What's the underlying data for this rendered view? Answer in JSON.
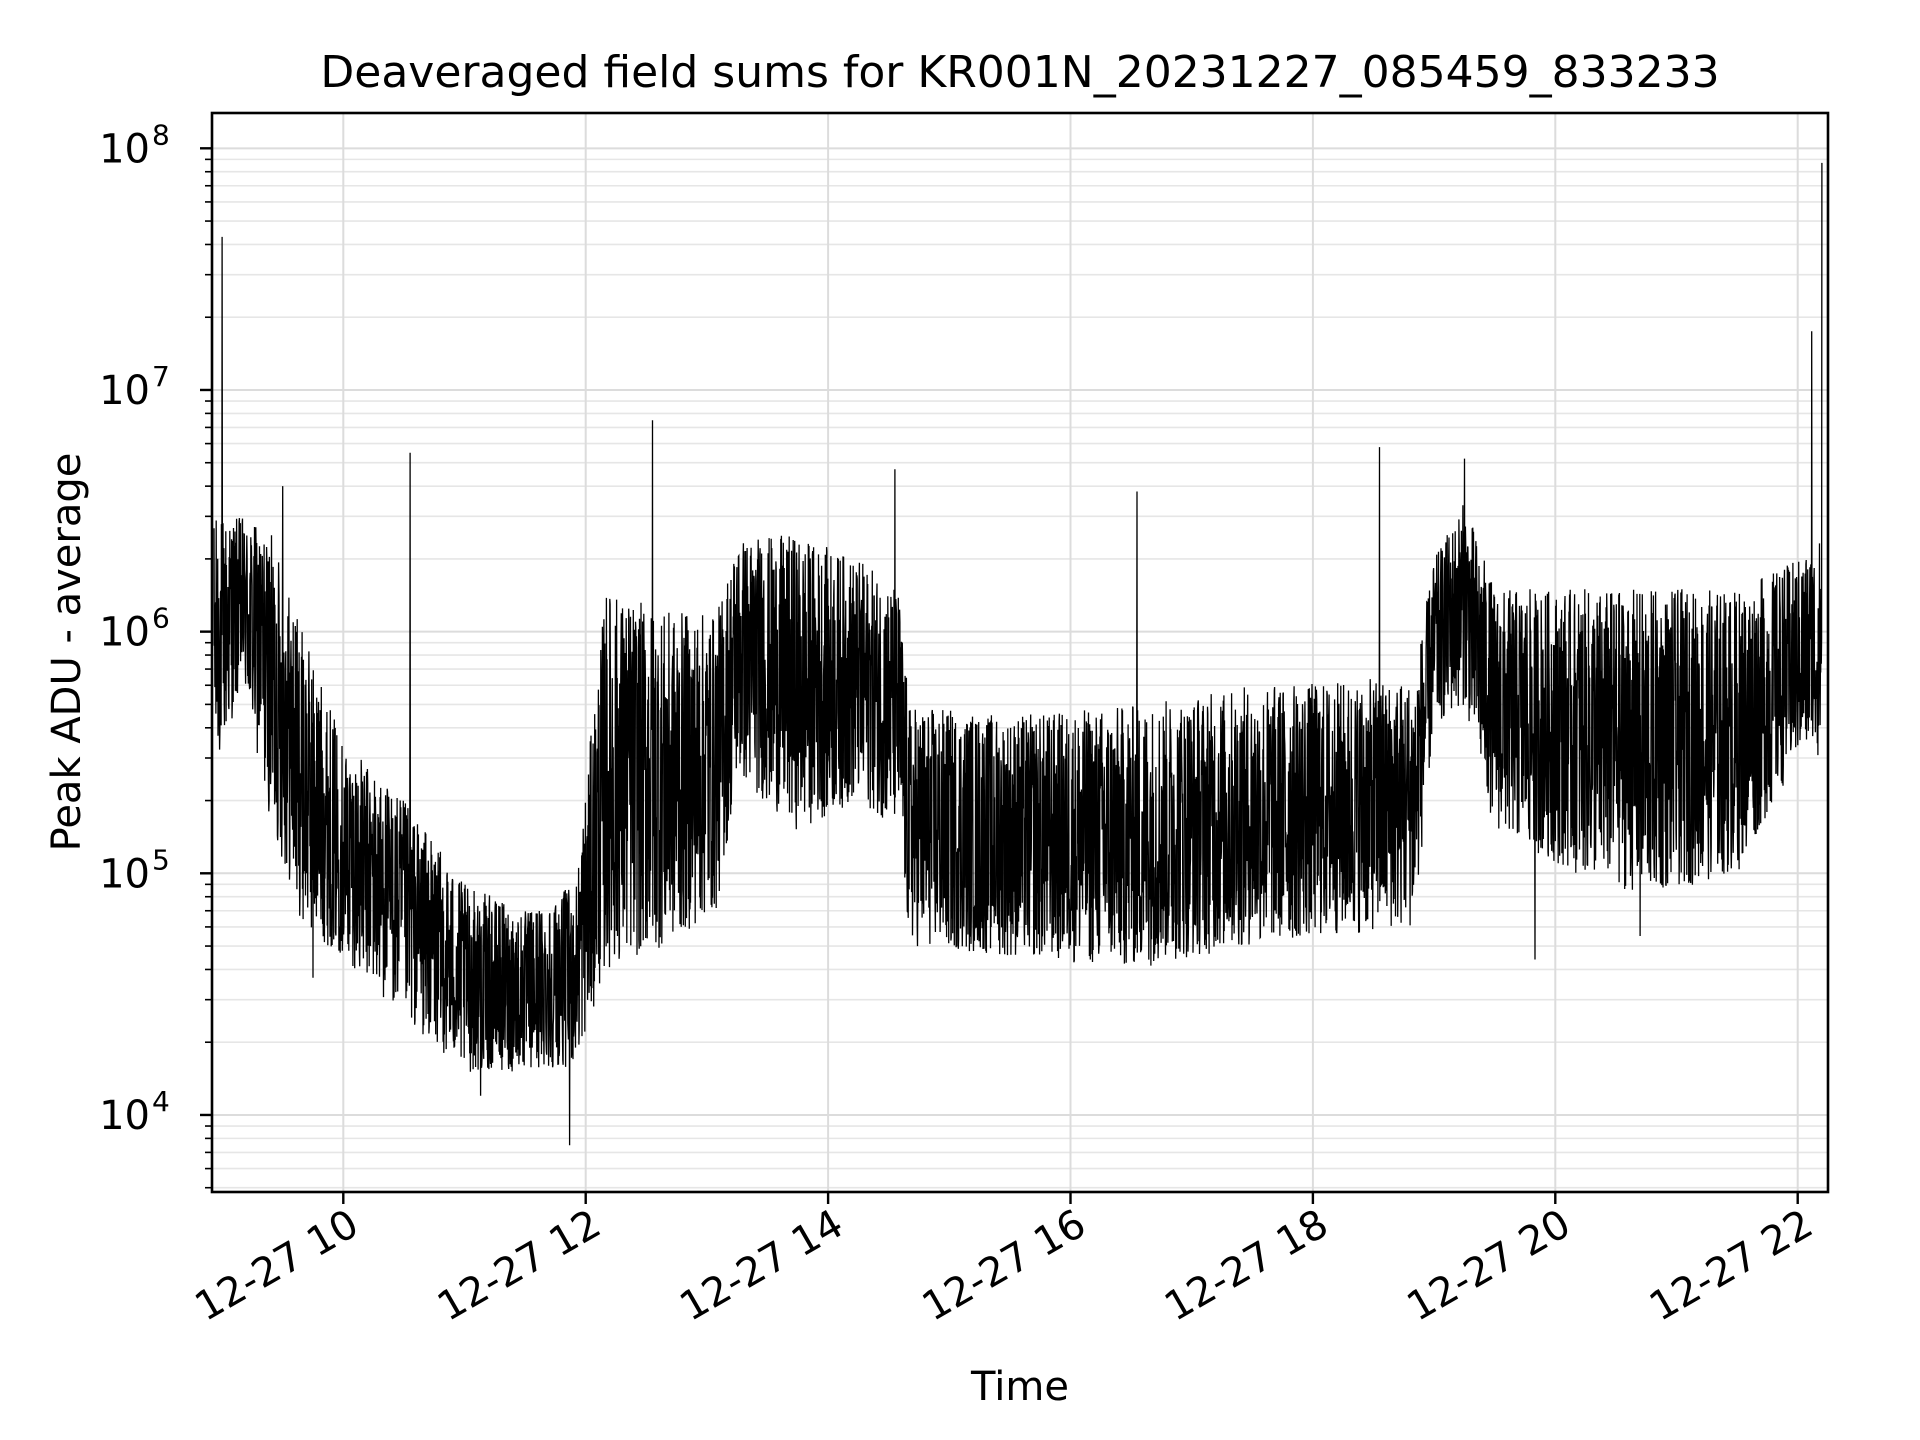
{
  "chart_data": {
    "type": "line",
    "title": "Deaveraged field sums for KR001N_20231227_085459_833233",
    "xlabel": "Time",
    "ylabel": "Peak ADU - average",
    "y_scale": "log",
    "grid": true,
    "legend": "none",
    "colors": {
      "line": "#000000",
      "grid": "#dcdcdc"
    },
    "xlim": [
      "12-27 08:55",
      "12-27 22:15"
    ],
    "ylim": [
      4800,
      140000000
    ],
    "x_ticks": [
      {
        "time": "12-27 10:00",
        "label": "12-27 10"
      },
      {
        "time": "12-27 12:00",
        "label": "12-27 12"
      },
      {
        "time": "12-27 14:00",
        "label": "12-27 14"
      },
      {
        "time": "12-27 16:00",
        "label": "12-27 16"
      },
      {
        "time": "12-27 18:00",
        "label": "12-27 18"
      },
      {
        "time": "12-27 20:00",
        "label": "12-27 20"
      },
      {
        "time": "12-27 22:00",
        "label": "12-27 22"
      }
    ],
    "y_ticks": [
      {
        "value": 10000,
        "base": "10",
        "exp": "4"
      },
      {
        "value": 100000,
        "base": "10",
        "exp": "5"
      },
      {
        "value": 1000000,
        "base": "10",
        "exp": "6"
      },
      {
        "value": 10000000,
        "base": "10",
        "exp": "7"
      },
      {
        "value": 100000000,
        "base": "10",
        "exp": "8"
      }
    ],
    "series": [
      {
        "values_shape": "dense noisy time series, band of min/max envelopes",
        "envelope": [
          {
            "time": "12-27 08:56",
            "low": 250000,
            "high": 3000000
          },
          {
            "time": "12-27 09:10",
            "low": 600000,
            "high": 3000000
          },
          {
            "time": "12-27 09:25",
            "low": 150000,
            "high": 2500000
          },
          {
            "time": "12-27 09:40",
            "low": 60000,
            "high": 1000000
          },
          {
            "time": "12-27 10:00",
            "low": 45000,
            "high": 350000
          },
          {
            "time": "12-27 10:30",
            "low": 25000,
            "high": 200000
          },
          {
            "time": "12-27 11:00",
            "low": 15000,
            "high": 90000
          },
          {
            "time": "12-27 11:30",
            "low": 15000,
            "high": 70000
          },
          {
            "time": "12-27 11:55",
            "low": 16000,
            "high": 90000
          },
          {
            "time": "12-27 12:10",
            "low": 40000,
            "high": 1500000
          },
          {
            "time": "12-27 12:40",
            "low": 50000,
            "high": 1200000
          },
          {
            "time": "12-27 13:05",
            "low": 70000,
            "high": 1200000
          },
          {
            "time": "12-27 13:15",
            "low": 250000,
            "high": 2500000
          },
          {
            "time": "12-27 13:45",
            "low": 150000,
            "high": 2500000
          },
          {
            "time": "12-27 14:15",
            "low": 200000,
            "high": 2000000
          },
          {
            "time": "12-27 14:35",
            "low": 150000,
            "high": 1500000
          },
          {
            "time": "12-27 14:40",
            "low": 50000,
            "high": 500000
          },
          {
            "time": "12-27 15:30",
            "low": 45000,
            "high": 450000
          },
          {
            "time": "12-27 16:30",
            "low": 40000,
            "high": 500000
          },
          {
            "time": "12-27 17:30",
            "low": 50000,
            "high": 600000
          },
          {
            "time": "12-27 18:50",
            "low": 60000,
            "high": 650000
          },
          {
            "time": "12-27 19:00",
            "low": 400000,
            "high": 2000000
          },
          {
            "time": "12-27 19:15",
            "low": 500000,
            "high": 3500000
          },
          {
            "time": "12-27 19:30",
            "low": 150000,
            "high": 1500000
          },
          {
            "time": "12-27 20:10",
            "low": 100000,
            "high": 1500000
          },
          {
            "time": "12-27 20:45",
            "low": 80000,
            "high": 1500000
          },
          {
            "time": "12-27 21:30",
            "low": 100000,
            "high": 1500000
          },
          {
            "time": "12-27 22:00",
            "low": 300000,
            "high": 2000000
          },
          {
            "time": "12-27 22:12",
            "low": 300000,
            "high": 2500000
          }
        ],
        "spikes": [
          {
            "time": "12-27 09:00",
            "value": 43000000
          },
          {
            "time": "12-27 09:30",
            "value": 4000000
          },
          {
            "time": "12-27 10:33",
            "value": 5500000
          },
          {
            "time": "12-27 12:33",
            "value": 7500000
          },
          {
            "time": "12-27 14:33",
            "value": 4700000
          },
          {
            "time": "12-27 16:33",
            "value": 3800000
          },
          {
            "time": "12-27 18:33",
            "value": 5800000
          },
          {
            "time": "12-27 19:15",
            "value": 5200000
          },
          {
            "time": "12-27 22:07",
            "value": 17500000
          },
          {
            "time": "12-27 22:12",
            "value": 87000000
          }
        ],
        "dips": [
          {
            "time": "12-27 11:52",
            "value": 7500
          },
          {
            "time": "12-27 11:08",
            "value": 12000
          },
          {
            "time": "12-27 09:45",
            "value": 37000
          },
          {
            "time": "12-27 19:50",
            "value": 44000
          },
          {
            "time": "12-27 20:42",
            "value": 55000
          }
        ]
      }
    ]
  }
}
